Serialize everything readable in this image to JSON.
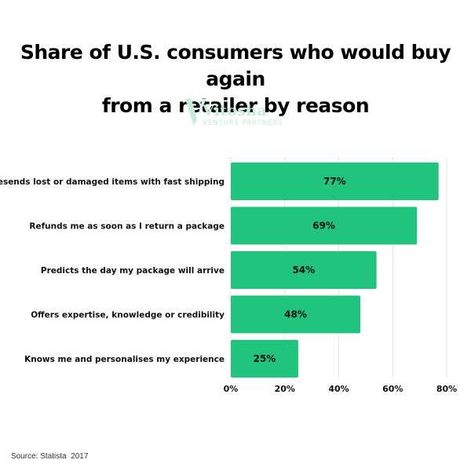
{
  "title_lines": [
    "Share of U.S. consumers who would buy again",
    "from a retailer by reason"
  ],
  "logo": {
    "name": "Vitosha",
    "tagline": "VENTURE PARTNERS"
  },
  "source": "Source: Statista  2017",
  "colors": {
    "bar": "#21c47c",
    "grid": "#e6e6e6",
    "logo": "#c6ecd8",
    "text": "#111111"
  },
  "chart_data": {
    "type": "bar",
    "orientation": "horizontal",
    "categories": [
      "Resends lost or damaged items with fast shipping",
      "Refunds me as soon as I return a package",
      "Predicts the day my package will arrive",
      "Offers expertise, knowledge or credibility",
      "Knows me and personalises my experience"
    ],
    "values": [
      77,
      69,
      54,
      48,
      25
    ],
    "value_labels": [
      "77%",
      "69%",
      "54%",
      "48%",
      "25%"
    ],
    "xlim": [
      0,
      80
    ],
    "x_ticks": [
      0,
      20,
      40,
      60,
      80
    ],
    "x_tick_labels": [
      "0%",
      "20%",
      "40%",
      "60%",
      "80%"
    ],
    "grid": true,
    "xlabel": "",
    "ylabel": ""
  }
}
